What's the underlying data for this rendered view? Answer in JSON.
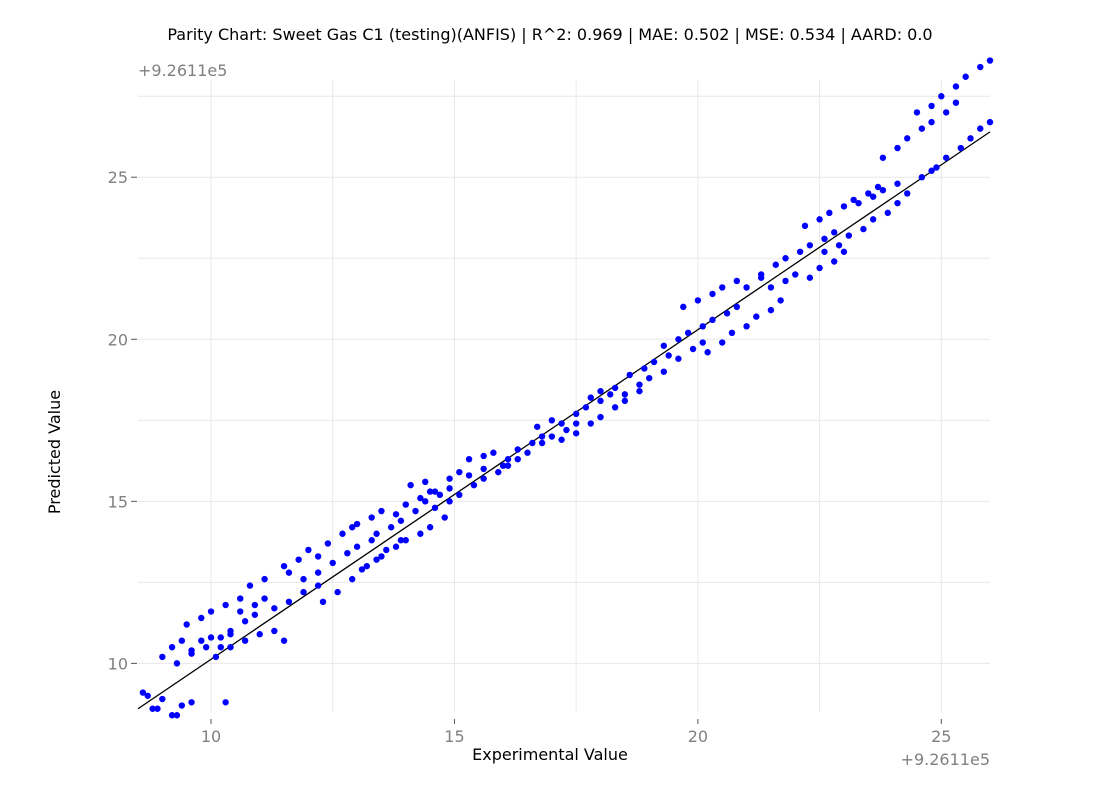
{
  "chart_data": {
    "type": "scatter",
    "title": "Parity Chart: Sweet Gas C1 (testing)(ANFIS) | R^2: 0.969 | MAE: 0.502 | MSE: 0.534 | AARD: 0.0",
    "xlabel": "Experimental Value",
    "ylabel": "Predicted Value",
    "x_offset_label": "+9.2611e5",
    "y_offset_label": "+9.2611e5",
    "xlim": [
      8.5,
      26.0
    ],
    "ylim": [
      8.5,
      28.0
    ],
    "x_ticks": [
      10,
      15,
      20,
      25
    ],
    "y_ticks": [
      10,
      15,
      20,
      25
    ],
    "x_tick_labels": [
      "10",
      "15",
      "20",
      "25"
    ],
    "y_tick_labels": [
      "10",
      "15",
      "20",
      "25"
    ],
    "grid": true,
    "parity_line": {
      "x": [
        8.5,
        26.0
      ],
      "y": [
        8.6,
        26.4
      ]
    },
    "series": [
      {
        "marker_color": "#0000ff",
        "line_color": "#000000",
        "points": [
          [
            8.6,
            9.1
          ],
          [
            8.7,
            9.0
          ],
          [
            8.8,
            8.6
          ],
          [
            8.9,
            8.6
          ],
          [
            9.0,
            8.9
          ],
          [
            9.2,
            8.4
          ],
          [
            9.3,
            8.4
          ],
          [
            9.4,
            8.7
          ],
          [
            9.6,
            8.8
          ],
          [
            9.0,
            10.2
          ],
          [
            9.2,
            10.5
          ],
          [
            9.4,
            10.7
          ],
          [
            9.6,
            10.4
          ],
          [
            9.8,
            10.7
          ],
          [
            10.0,
            10.8
          ],
          [
            10.2,
            10.5
          ],
          [
            10.4,
            10.9
          ],
          [
            9.5,
            11.2
          ],
          [
            9.8,
            11.4
          ],
          [
            10.0,
            11.6
          ],
          [
            10.3,
            11.8
          ],
          [
            10.6,
            12.0
          ],
          [
            10.8,
            12.4
          ],
          [
            11.1,
            12.6
          ],
          [
            9.3,
            10.0
          ],
          [
            9.6,
            10.3
          ],
          [
            9.9,
            10.5
          ],
          [
            10.2,
            10.8
          ],
          [
            10.4,
            11.0
          ],
          [
            10.7,
            11.3
          ],
          [
            10.9,
            11.5
          ],
          [
            10.1,
            10.2
          ],
          [
            10.4,
            10.5
          ],
          [
            10.7,
            10.7
          ],
          [
            11.0,
            10.9
          ],
          [
            11.3,
            11.0
          ],
          [
            11.5,
            10.7
          ],
          [
            10.3,
            8.8
          ],
          [
            10.6,
            11.6
          ],
          [
            10.9,
            11.8
          ],
          [
            11.1,
            12.0
          ],
          [
            11.3,
            11.7
          ],
          [
            11.6,
            11.9
          ],
          [
            11.9,
            12.2
          ],
          [
            12.2,
            12.4
          ],
          [
            11.5,
            13.0
          ],
          [
            11.8,
            13.2
          ],
          [
            12.0,
            13.5
          ],
          [
            12.2,
            13.3
          ],
          [
            12.4,
            13.7
          ],
          [
            12.7,
            14.0
          ],
          [
            12.9,
            14.2
          ],
          [
            11.6,
            12.8
          ],
          [
            11.9,
            12.6
          ],
          [
            12.2,
            12.8
          ],
          [
            12.5,
            13.1
          ],
          [
            12.8,
            13.4
          ],
          [
            13.0,
            13.6
          ],
          [
            13.3,
            13.8
          ],
          [
            12.3,
            11.9
          ],
          [
            12.6,
            12.2
          ],
          [
            12.9,
            12.6
          ],
          [
            13.1,
            12.9
          ],
          [
            13.4,
            13.2
          ],
          [
            13.6,
            13.5
          ],
          [
            13.9,
            13.8
          ],
          [
            13.0,
            14.3
          ],
          [
            13.3,
            14.5
          ],
          [
            13.5,
            14.7
          ],
          [
            13.8,
            14.6
          ],
          [
            14.0,
            14.9
          ],
          [
            14.3,
            15.1
          ],
          [
            14.5,
            15.3
          ],
          [
            13.2,
            13.0
          ],
          [
            13.5,
            13.3
          ],
          [
            13.8,
            13.6
          ],
          [
            14.0,
            13.8
          ],
          [
            14.3,
            14.0
          ],
          [
            14.5,
            14.2
          ],
          [
            14.8,
            14.5
          ],
          [
            13.4,
            14.0
          ],
          [
            13.7,
            14.2
          ],
          [
            13.9,
            14.4
          ],
          [
            14.2,
            14.7
          ],
          [
            14.4,
            15.0
          ],
          [
            14.7,
            15.2
          ],
          [
            14.9,
            15.4
          ],
          [
            14.1,
            15.5
          ],
          [
            14.4,
            15.6
          ],
          [
            14.6,
            15.3
          ],
          [
            14.9,
            15.7
          ],
          [
            15.1,
            15.9
          ],
          [
            15.3,
            15.8
          ],
          [
            15.6,
            16.0
          ],
          [
            14.6,
            14.8
          ],
          [
            14.9,
            15.0
          ],
          [
            15.1,
            15.2
          ],
          [
            15.4,
            15.5
          ],
          [
            15.6,
            15.7
          ],
          [
            15.9,
            15.9
          ],
          [
            16.1,
            16.1
          ],
          [
            15.3,
            16.3
          ],
          [
            15.6,
            16.4
          ],
          [
            15.8,
            16.5
          ],
          [
            16.1,
            16.3
          ],
          [
            16.3,
            16.6
          ],
          [
            16.6,
            16.8
          ],
          [
            16.8,
            17.0
          ],
          [
            16.0,
            16.1
          ],
          [
            16.3,
            16.3
          ],
          [
            16.5,
            16.5
          ],
          [
            16.8,
            16.8
          ],
          [
            17.0,
            17.0
          ],
          [
            17.3,
            17.2
          ],
          [
            17.5,
            17.4
          ],
          [
            16.7,
            17.3
          ],
          [
            17.0,
            17.5
          ],
          [
            17.2,
            17.4
          ],
          [
            17.5,
            17.7
          ],
          [
            17.7,
            17.9
          ],
          [
            18.0,
            18.1
          ],
          [
            18.2,
            18.3
          ],
          [
            17.2,
            16.9
          ],
          [
            17.5,
            17.1
          ],
          [
            17.8,
            17.4
          ],
          [
            18.0,
            17.6
          ],
          [
            18.3,
            17.9
          ],
          [
            18.5,
            18.1
          ],
          [
            18.8,
            18.4
          ],
          [
            17.8,
            18.2
          ],
          [
            18.0,
            18.4
          ],
          [
            18.3,
            18.5
          ],
          [
            18.5,
            18.3
          ],
          [
            18.8,
            18.6
          ],
          [
            19.0,
            18.8
          ],
          [
            19.3,
            19.0
          ],
          [
            18.6,
            18.9
          ],
          [
            18.9,
            19.1
          ],
          [
            19.1,
            19.3
          ],
          [
            19.4,
            19.5
          ],
          [
            19.6,
            19.4
          ],
          [
            19.9,
            19.7
          ],
          [
            20.1,
            19.9
          ],
          [
            19.3,
            19.8
          ],
          [
            19.6,
            20.0
          ],
          [
            19.8,
            20.2
          ],
          [
            20.1,
            20.4
          ],
          [
            20.3,
            20.6
          ],
          [
            20.6,
            20.8
          ],
          [
            20.8,
            21.0
          ],
          [
            19.7,
            21.0
          ],
          [
            20.0,
            21.2
          ],
          [
            20.3,
            21.4
          ],
          [
            20.5,
            21.6
          ],
          [
            20.8,
            21.8
          ],
          [
            21.0,
            21.6
          ],
          [
            21.3,
            21.9
          ],
          [
            20.2,
            19.6
          ],
          [
            20.5,
            19.9
          ],
          [
            20.7,
            20.2
          ],
          [
            21.0,
            20.4
          ],
          [
            21.2,
            20.7
          ],
          [
            21.5,
            20.9
          ],
          [
            21.7,
            21.2
          ],
          [
            21.3,
            22.0
          ],
          [
            21.6,
            22.3
          ],
          [
            21.8,
            22.5
          ],
          [
            22.1,
            22.7
          ],
          [
            22.3,
            22.9
          ],
          [
            22.6,
            23.1
          ],
          [
            22.8,
            23.3
          ],
          [
            21.5,
            21.6
          ],
          [
            21.8,
            21.8
          ],
          [
            22.0,
            22.0
          ],
          [
            22.3,
            21.9
          ],
          [
            22.5,
            22.2
          ],
          [
            22.8,
            22.4
          ],
          [
            23.0,
            22.7
          ],
          [
            22.2,
            23.5
          ],
          [
            22.5,
            23.7
          ],
          [
            22.7,
            23.9
          ],
          [
            23.0,
            24.1
          ],
          [
            23.2,
            24.3
          ],
          [
            23.5,
            24.5
          ],
          [
            23.7,
            24.7
          ],
          [
            22.6,
            22.7
          ],
          [
            22.9,
            22.9
          ],
          [
            23.1,
            23.2
          ],
          [
            23.4,
            23.4
          ],
          [
            23.6,
            23.7
          ],
          [
            23.9,
            23.9
          ],
          [
            24.1,
            24.2
          ],
          [
            23.3,
            24.2
          ],
          [
            23.6,
            24.4
          ],
          [
            23.8,
            24.6
          ],
          [
            24.1,
            24.8
          ],
          [
            24.3,
            24.5
          ],
          [
            24.6,
            25.0
          ],
          [
            24.8,
            25.2
          ],
          [
            23.8,
            25.6
          ],
          [
            24.1,
            25.9
          ],
          [
            24.3,
            26.2
          ],
          [
            24.6,
            26.5
          ],
          [
            24.8,
            26.7
          ],
          [
            25.1,
            27.0
          ],
          [
            25.3,
            27.3
          ],
          [
            24.5,
            27.0
          ],
          [
            24.8,
            27.2
          ],
          [
            25.0,
            27.5
          ],
          [
            25.3,
            27.8
          ],
          [
            25.5,
            28.1
          ],
          [
            25.8,
            28.4
          ],
          [
            26.0,
            28.6
          ],
          [
            24.9,
            25.3
          ],
          [
            25.1,
            25.6
          ],
          [
            25.4,
            25.9
          ],
          [
            25.6,
            26.2
          ],
          [
            25.8,
            26.5
          ],
          [
            26.0,
            26.7
          ]
        ]
      }
    ]
  }
}
